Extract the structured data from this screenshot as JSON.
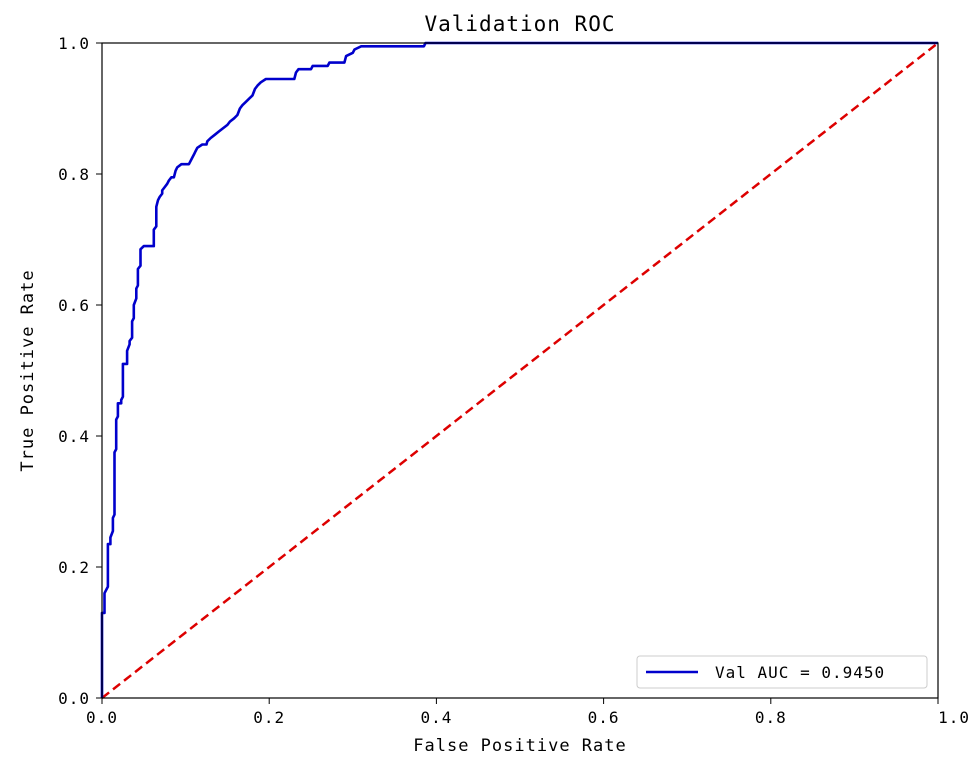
{
  "chart_data": {
    "type": "line",
    "title": "Validation ROC",
    "xlabel": "False Positive Rate",
    "ylabel": "True Positive Rate",
    "xlim": [
      0.0,
      1.0
    ],
    "ylim": [
      0.0,
      1.0
    ],
    "xticks": [
      "0.0",
      "0.2",
      "0.4",
      "0.6",
      "0.8",
      "1.0"
    ],
    "yticks": [
      "0.0",
      "0.2",
      "0.4",
      "0.6",
      "0.8",
      "1.0"
    ],
    "grid": false,
    "legend_position": "lower-right",
    "series": [
      {
        "name": "Val AUC = 0.9450",
        "color": "#0000cc",
        "style": "solid",
        "points": [
          [
            0.0,
            0.0
          ],
          [
            0.0,
            0.13
          ],
          [
            0.003,
            0.13
          ],
          [
            0.003,
            0.16
          ],
          [
            0.007,
            0.17
          ],
          [
            0.007,
            0.235
          ],
          [
            0.01,
            0.235
          ],
          [
            0.01,
            0.245
          ],
          [
            0.013,
            0.255
          ],
          [
            0.013,
            0.275
          ],
          [
            0.015,
            0.28
          ],
          [
            0.015,
            0.375
          ],
          [
            0.017,
            0.38
          ],
          [
            0.017,
            0.425
          ],
          [
            0.019,
            0.43
          ],
          [
            0.019,
            0.45
          ],
          [
            0.023,
            0.45
          ],
          [
            0.023,
            0.455
          ],
          [
            0.025,
            0.46
          ],
          [
            0.025,
            0.51
          ],
          [
            0.03,
            0.51
          ],
          [
            0.03,
            0.53
          ],
          [
            0.033,
            0.54
          ],
          [
            0.033,
            0.545
          ],
          [
            0.036,
            0.55
          ],
          [
            0.036,
            0.575
          ],
          [
            0.038,
            0.58
          ],
          [
            0.038,
            0.6
          ],
          [
            0.041,
            0.61
          ],
          [
            0.041,
            0.625
          ],
          [
            0.043,
            0.63
          ],
          [
            0.043,
            0.655
          ],
          [
            0.046,
            0.66
          ],
          [
            0.046,
            0.685
          ],
          [
            0.05,
            0.69
          ],
          [
            0.062,
            0.69
          ],
          [
            0.062,
            0.715
          ],
          [
            0.065,
            0.72
          ],
          [
            0.065,
            0.75
          ],
          [
            0.067,
            0.76
          ],
          [
            0.069,
            0.765
          ],
          [
            0.072,
            0.77
          ],
          [
            0.072,
            0.775
          ],
          [
            0.075,
            0.78
          ],
          [
            0.078,
            0.785
          ],
          [
            0.08,
            0.79
          ],
          [
            0.083,
            0.795
          ],
          [
            0.086,
            0.795
          ],
          [
            0.088,
            0.805
          ],
          [
            0.09,
            0.81
          ],
          [
            0.095,
            0.815
          ],
          [
            0.1,
            0.815
          ],
          [
            0.104,
            0.815
          ],
          [
            0.108,
            0.825
          ],
          [
            0.11,
            0.83
          ],
          [
            0.112,
            0.835
          ],
          [
            0.114,
            0.84
          ],
          [
            0.12,
            0.845
          ],
          [
            0.125,
            0.845
          ],
          [
            0.126,
            0.85
          ],
          [
            0.13,
            0.855
          ],
          [
            0.135,
            0.86
          ],
          [
            0.14,
            0.865
          ],
          [
            0.145,
            0.87
          ],
          [
            0.15,
            0.875
          ],
          [
            0.153,
            0.88
          ],
          [
            0.158,
            0.885
          ],
          [
            0.162,
            0.89
          ],
          [
            0.165,
            0.9
          ],
          [
            0.168,
            0.905
          ],
          [
            0.172,
            0.91
          ],
          [
            0.176,
            0.915
          ],
          [
            0.18,
            0.92
          ],
          [
            0.183,
            0.93
          ],
          [
            0.186,
            0.935
          ],
          [
            0.19,
            0.94
          ],
          [
            0.196,
            0.945
          ],
          [
            0.23,
            0.945
          ],
          [
            0.232,
            0.955
          ],
          [
            0.235,
            0.96
          ],
          [
            0.25,
            0.96
          ],
          [
            0.252,
            0.965
          ],
          [
            0.27,
            0.965
          ],
          [
            0.272,
            0.97
          ],
          [
            0.29,
            0.97
          ],
          [
            0.292,
            0.98
          ],
          [
            0.3,
            0.985
          ],
          [
            0.302,
            0.99
          ],
          [
            0.31,
            0.995
          ],
          [
            0.385,
            0.995
          ],
          [
            0.387,
            1.0
          ],
          [
            1.0,
            1.0
          ]
        ]
      },
      {
        "name": "",
        "color": "#dd0000",
        "style": "dashed",
        "points": [
          [
            0.0,
            0.0
          ],
          [
            1.0,
            1.0
          ]
        ]
      }
    ]
  }
}
